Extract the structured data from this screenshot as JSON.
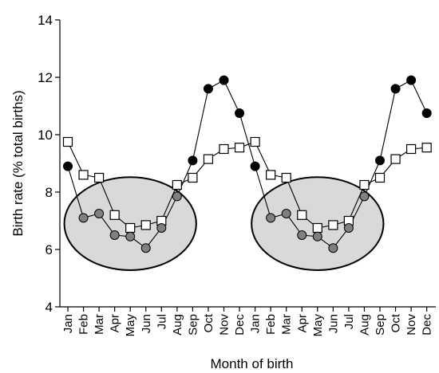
{
  "chart_data": {
    "type": "line",
    "xlabel": "Month of birth",
    "ylabel": "Birth rate (% total births)",
    "ylim": [
      4,
      14
    ],
    "yticks": [
      4,
      6,
      8,
      10,
      12,
      14
    ],
    "grid": false,
    "categories": [
      "Jan",
      "Feb",
      "Mar",
      "Apr",
      "May",
      "Jun",
      "Jul",
      "Aug",
      "Sep",
      "Oct",
      "Nov",
      "Dec",
      "Jan",
      "Feb",
      "Mar",
      "Apr",
      "May",
      "Jun",
      "Jul",
      "Aug",
      "Sep",
      "Oct",
      "Nov",
      "Dec"
    ],
    "series": [
      {
        "marker": "filled-circle",
        "values": [
          8.9,
          7.1,
          7.25,
          6.5,
          6.45,
          6.05,
          6.75,
          7.85,
          9.1,
          11.6,
          11.9,
          10.75,
          8.9,
          7.1,
          7.25,
          6.5,
          6.45,
          6.05,
          6.75,
          7.85,
          9.1,
          11.6,
          11.9,
          10.75
        ]
      },
      {
        "marker": "open-square",
        "values": [
          9.75,
          8.6,
          8.5,
          7.2,
          6.75,
          6.85,
          7.0,
          8.25,
          8.5,
          9.15,
          9.5,
          9.55,
          9.75,
          8.6,
          8.5,
          7.2,
          6.75,
          6.85,
          7.0,
          8.25,
          8.5,
          9.15,
          9.5,
          9.55
        ]
      }
    ],
    "highlight_regions": [
      {
        "from": "Feb",
        "to": "Aug",
        "ymin": 5.5,
        "ymax": 8.3
      },
      {
        "from": "Feb",
        "to": "Aug",
        "ymin": 5.5,
        "ymax": 8.3
      }
    ],
    "colors": {
      "line": "#000000",
      "filled_marker": "#000000",
      "filled_marker_in_region": "#808080",
      "open_marker_fill": "#ffffff",
      "region_fill": "#d9d9d9"
    }
  }
}
